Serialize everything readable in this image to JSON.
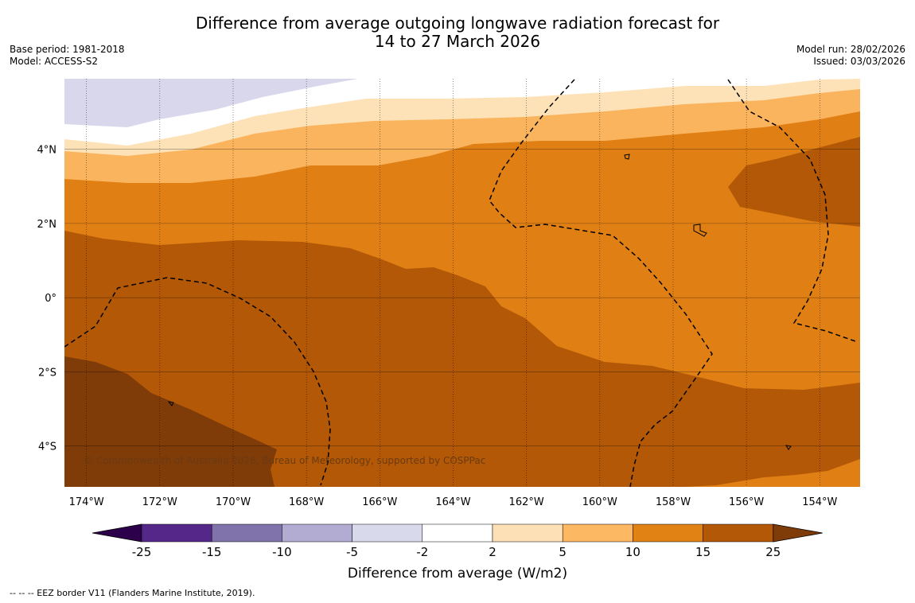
{
  "title_line1": "Difference from average outgoing longwave radiation forecast for",
  "title_line2": "14 to 27 March 2026",
  "base_period": "Base period: 1981-2018",
  "model": "Model: ACCESS-S2",
  "model_run": "Model run: 28/02/2026",
  "issued": "Issued: 03/03/2026",
  "copyright": "© Commonwealth of Australia 2026, Bureau of Meteorology, supported by COSPPac",
  "footer_legend": "--  --  -- EEZ border V11 (Flanders Marine Institute, 2019).",
  "map": {
    "lon_range": [
      -174.6,
      -152.9
    ],
    "lat_range": [
      -5.1,
      5.9
    ],
    "lon_ticks": [
      {
        "value": -174,
        "label": "174°W"
      },
      {
        "value": -172,
        "label": "172°W"
      },
      {
        "value": -170,
        "label": "170°W"
      },
      {
        "value": -168,
        "label": "168°W"
      },
      {
        "value": -166,
        "label": "166°W"
      },
      {
        "value": -164,
        "label": "164°W"
      },
      {
        "value": -162,
        "label": "162°W"
      },
      {
        "value": -160,
        "label": "160°W"
      },
      {
        "value": -158,
        "label": "158°W"
      },
      {
        "value": -156,
        "label": "156°W"
      },
      {
        "value": -154,
        "label": "154°W"
      }
    ],
    "lat_ticks": [
      {
        "value": 4,
        "label": "4°N"
      },
      {
        "value": 2,
        "label": "2°N"
      },
      {
        "value": 0,
        "label": "0°"
      },
      {
        "value": -2,
        "label": "2°S"
      },
      {
        "value": -4,
        "label": "4°S"
      }
    ],
    "colors": {
      "lt_m5": "#b3acd6",
      "m5_m2": "#d9d7ec",
      "m2_2": "#ffffff",
      "p2_5": "#fde2b8",
      "p5_10": "#fbb45e",
      "p10_15": "#e08014",
      "p15_25": "#b35806",
      "gt25": "#7f3b08",
      "grid": "#000000",
      "eez": "#000000"
    }
  },
  "colorbar": {
    "labels": [
      "-25",
      "-15",
      "-10",
      "-5",
      "-2",
      "2",
      "5",
      "10",
      "15",
      "25"
    ],
    "colors": [
      "#2d004b",
      "#542788",
      "#8073ac",
      "#b2abd2",
      "#d8daeb",
      "#ffffff",
      "#fee0b6",
      "#fdb863",
      "#e08214",
      "#b35806",
      "#7f3b08"
    ],
    "label": "Difference from average (W/m2)"
  }
}
